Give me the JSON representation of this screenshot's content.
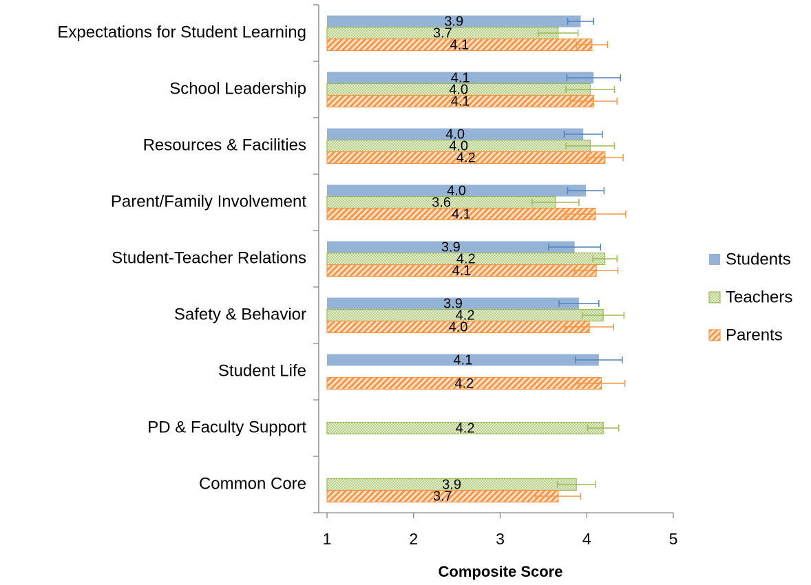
{
  "chart_data": {
    "type": "hbar",
    "xlabel": "Composite Score",
    "categories": [
      "Expectations for Student Learning",
      "School Leadership",
      "Resources & Facilities",
      "Parent/Family Involvement",
      "Student-Teacher Relations",
      "Safety & Behavior",
      "Student Life",
      "PD & Faculty Support",
      "Common Core"
    ],
    "series": [
      {
        "name": "Students",
        "color": "#95b3d7",
        "error_color": "#4f81bd",
        "pattern": "solid",
        "values": [
          3.93,
          4.08,
          3.96,
          3.99,
          3.86,
          3.91,
          4.14,
          null,
          null
        ],
        "errors": [
          0.15,
          0.31,
          0.22,
          0.21,
          0.3,
          0.23,
          0.27,
          null,
          null
        ],
        "value_labels": [
          "3.9",
          "4.1",
          "4.0",
          "4.0",
          "3.9",
          "3.9",
          "4.1",
          null,
          null
        ]
      },
      {
        "name": "Teachers",
        "color": "#9bbb59",
        "error_color": "#9bbb59",
        "pattern": "dots",
        "values": [
          3.67,
          4.04,
          4.04,
          3.64,
          4.21,
          4.19,
          null,
          4.19,
          3.88
        ],
        "errors": [
          0.23,
          0.28,
          0.28,
          0.27,
          0.14,
          0.24,
          null,
          0.18,
          0.22
        ],
        "value_labels": [
          "3.7",
          "4.0",
          "4.0",
          "3.6",
          "4.2",
          "4.2",
          null,
          "4.2",
          "3.9"
        ]
      },
      {
        "name": "Parents",
        "color": "#f79646",
        "error_color": "#f79646",
        "pattern": "hatch",
        "values": [
          4.06,
          4.08,
          4.21,
          4.1,
          4.11,
          4.03,
          4.17,
          null,
          3.67
        ],
        "errors": [
          0.18,
          0.27,
          0.21,
          0.35,
          0.25,
          0.28,
          0.27,
          null,
          0.26
        ],
        "value_labels": [
          "4.1",
          "4.1",
          "4.2",
          "4.1",
          "4.1",
          "4.0",
          "4.2",
          null,
          "3.7"
        ]
      }
    ],
    "xlim": [
      1,
      5
    ],
    "xticks": [
      1,
      2,
      3,
      4,
      5
    ],
    "legend": "right"
  }
}
